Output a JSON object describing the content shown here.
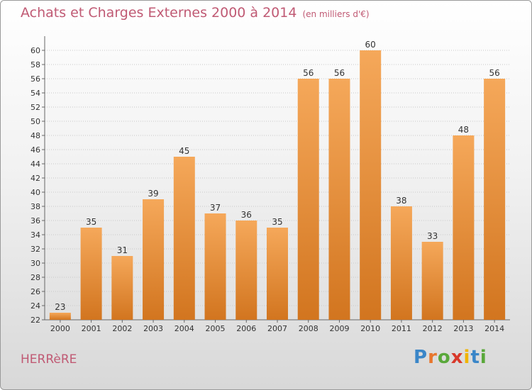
{
  "header": {
    "title": "Achats et Charges Externes 2000 à 2014",
    "subtitle": "(en milliers d'€)"
  },
  "footer": {
    "commune": "HERRèRE",
    "logo": [
      "P",
      "r",
      "o",
      "x",
      "i",
      "t",
      "i"
    ],
    "logo_colors": [
      "#3a86c8",
      "#e8762d",
      "#59a83a",
      "#d8392b",
      "#f0b400",
      "#3a86c8",
      "#59a83a"
    ]
  },
  "chart_data": {
    "type": "bar",
    "categories": [
      "2000",
      "2001",
      "2002",
      "2003",
      "2004",
      "2005",
      "2006",
      "2007",
      "2008",
      "2009",
      "2010",
      "2011",
      "2012",
      "2013",
      "2014"
    ],
    "values": [
      23,
      35,
      31,
      39,
      45,
      37,
      36,
      35,
      56,
      56,
      60,
      38,
      33,
      48,
      56
    ],
    "ylim": [
      22,
      61
    ],
    "yticks": [
      22,
      24,
      26,
      28,
      30,
      32,
      34,
      36,
      38,
      40,
      42,
      44,
      46,
      48,
      50,
      52,
      54,
      56,
      58,
      60
    ],
    "grid": "horizontal dotted",
    "bar_color": "#f0a050",
    "bar_color_dark": "#d97a22"
  }
}
